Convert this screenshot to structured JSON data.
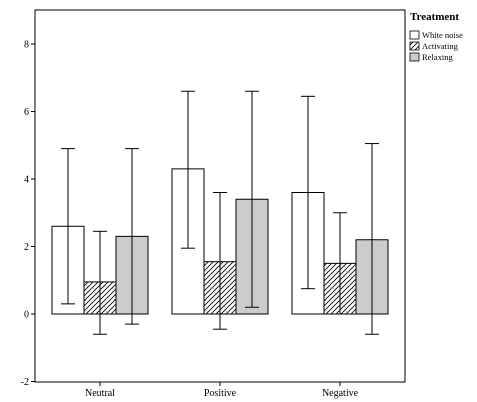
{
  "chart_data": {
    "type": "bar",
    "categories": [
      "Neutral",
      "Positive",
      "Negative"
    ],
    "legend_title": "Treatment",
    "legend_position": "top-right",
    "ylim": [
      -2,
      9
    ],
    "yticks": [
      "-2",
      "0",
      "2",
      "4",
      "6",
      "8"
    ],
    "grid": false,
    "error_bars": true,
    "series": [
      {
        "name": "White noise",
        "pattern": "empty",
        "color": "#ffffff",
        "values": [
          2.6,
          4.3,
          3.6
        ],
        "err_low": [
          0.3,
          1.95,
          0.75
        ],
        "err_high": [
          4.9,
          6.6,
          6.45
        ]
      },
      {
        "name": "Activating",
        "pattern": "hatched",
        "color": "#ffffff",
        "values": [
          0.95,
          1.55,
          1.5
        ],
        "err_low": [
          -0.6,
          -0.45,
          0.0
        ],
        "err_high": [
          2.45,
          3.6,
          3.0
        ]
      },
      {
        "name": "Relaxing",
        "pattern": "filled",
        "color": "#cccccc",
        "values": [
          2.3,
          3.4,
          2.2
        ],
        "err_low": [
          -0.3,
          0.2,
          -0.6
        ],
        "err_high": [
          4.9,
          6.6,
          5.05
        ]
      }
    ]
  }
}
